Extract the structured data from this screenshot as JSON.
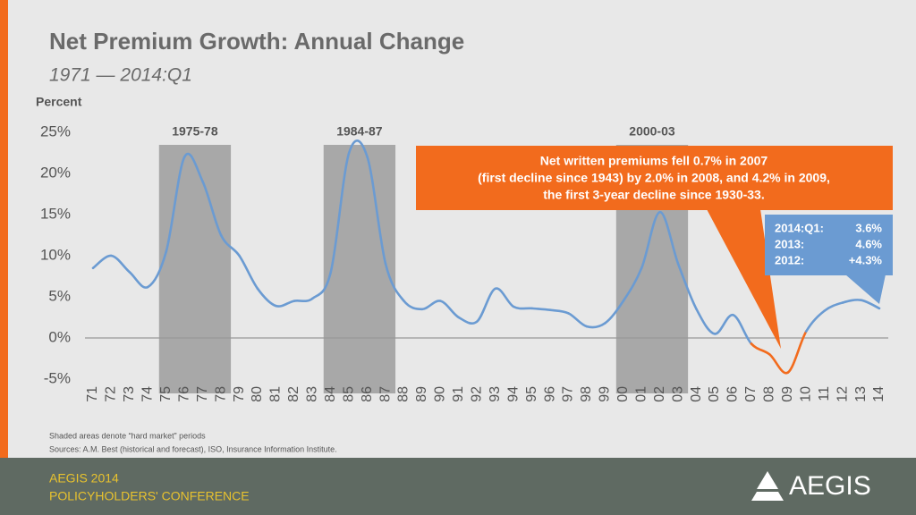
{
  "header": {
    "title": "Net Premium Growth: Annual Change",
    "subtitle": "1971 — 2014:Q1"
  },
  "chart_data": {
    "type": "line",
    "y_label": "Percent",
    "categories": [
      "71",
      "72",
      "73",
      "74",
      "75",
      "76",
      "77",
      "78",
      "79",
      "80",
      "81",
      "82",
      "83",
      "84",
      "85",
      "86",
      "87",
      "88",
      "89",
      "90",
      "91",
      "92",
      "93",
      "94",
      "95",
      "96",
      "97",
      "98",
      "99",
      "00",
      "01",
      "02",
      "03",
      "04",
      "05",
      "06",
      "07",
      "08",
      "09",
      "10",
      "11",
      "12",
      "13",
      "14"
    ],
    "series": [
      {
        "color": "#6b9bd2",
        "values": [
          8.5,
          10,
          8,
          6.2,
          10.5,
          22,
          19,
          12.5,
          10,
          6,
          3.9,
          4.5,
          4.8,
          8,
          22.5,
          22,
          9,
          4.5,
          3.5,
          4.5,
          2.5,
          2,
          6,
          3.8,
          3.6,
          3.4,
          3,
          1.4,
          1.8,
          4.5,
          8.5,
          15.3,
          9,
          3.5,
          0.5,
          2.8,
          -0.7,
          -2,
          -4.2,
          0.8,
          3.3,
          4.3,
          4.6,
          3.6
        ],
        "highlight": {
          "from": "07",
          "to": "10",
          "color": "#f26b1d"
        }
      }
    ],
    "ylim": [
      -5,
      25
    ],
    "yticks": [
      {
        "value": -5,
        "label": "-5%"
      },
      {
        "value": 0,
        "label": "0%"
      },
      {
        "value": 5,
        "label": "5%"
      },
      {
        "value": 10,
        "label": "10%"
      },
      {
        "value": 15,
        "label": "15%"
      },
      {
        "value": 20,
        "label": "20%"
      },
      {
        "value": 25,
        "label": "25%"
      }
    ],
    "shaded": [
      {
        "label": "1975-78",
        "from": "75",
        "to": "78"
      },
      {
        "label": "1984-87",
        "from": "84",
        "to": "87"
      },
      {
        "label": "2000-03",
        "from": "00",
        "to": "03"
      }
    ],
    "callout": [
      "Net written premiums fell 0.7% in 2007",
      "(first decline since 1943) by 2.0% in 2008, and 4.2% in 2009,",
      "the first 3-year decline since 1930-33."
    ],
    "recent": [
      [
        "2014:Q1:",
        "3.6%"
      ],
      [
        "2013:",
        "4.6%"
      ],
      [
        "2012:",
        "+4.3%"
      ]
    ]
  },
  "footnotes": [
    "Shaded areas denote “hard market” periods",
    "Sources:  A.M. Best (historical and forecast), ISO, Insurance Information Institute."
  ],
  "footer": {
    "event": "AEGIS 2014",
    "conference": "POLICYHOLDERS' CONFERENCE",
    "logo": "AEGIS"
  }
}
